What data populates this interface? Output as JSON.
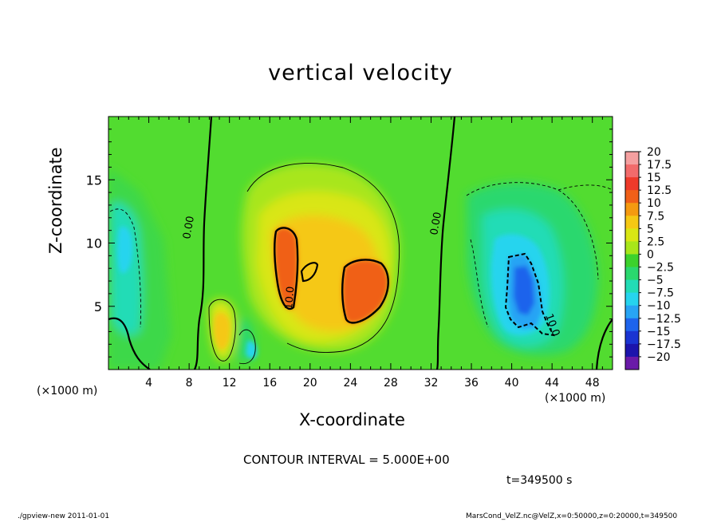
{
  "chart_data": {
    "type": "heatmap",
    "title": "vertical velocity",
    "xlabel": "X-coordinate",
    "ylabel": "Z-coordinate",
    "x_unit_left": "(×1000 m)",
    "x_unit_right": "(×1000 m)",
    "xlim": [
      0,
      50
    ],
    "ylim": [
      0,
      20
    ],
    "x_ticks": [
      4,
      8,
      12,
      16,
      20,
      24,
      28,
      32,
      36,
      40,
      44,
      48
    ],
    "y_ticks": [
      5,
      10,
      15
    ],
    "colorbar": {
      "levels": [
        "20",
        "17.5",
        "15",
        "12.5",
        "10",
        "7.5",
        "5",
        "2.5",
        "0",
        "-2.5",
        "-5",
        "-7.5",
        "-10",
        "-12.5",
        "-15",
        "-17.5",
        "-20"
      ],
      "colors": [
        "#f5a0a0",
        "#f26b6b",
        "#ee3a2a",
        "#f06018",
        "#f59a10",
        "#f5c814",
        "#d9e614",
        "#a8e61a",
        "#3cd22c",
        "#2ad86e",
        "#22dcb6",
        "#26d4ee",
        "#28a4f4",
        "#1e64ec",
        "#1a34d2",
        "#1c14ac",
        "#6a1aa8"
      ]
    },
    "contour_labels": [
      "0.00",
      "0.00",
      "10.0",
      "10.0"
    ],
    "contour_interval": "CONTOUR INTERVAL = 5.000E+00",
    "time": "t=349500 s",
    "grid": false
  },
  "footer": {
    "left": "./gpview-new  2011-01-01",
    "right": "MarsCond_VelZ.nc@VelZ,x=0:50000,z=0:20000,t=349500"
  }
}
